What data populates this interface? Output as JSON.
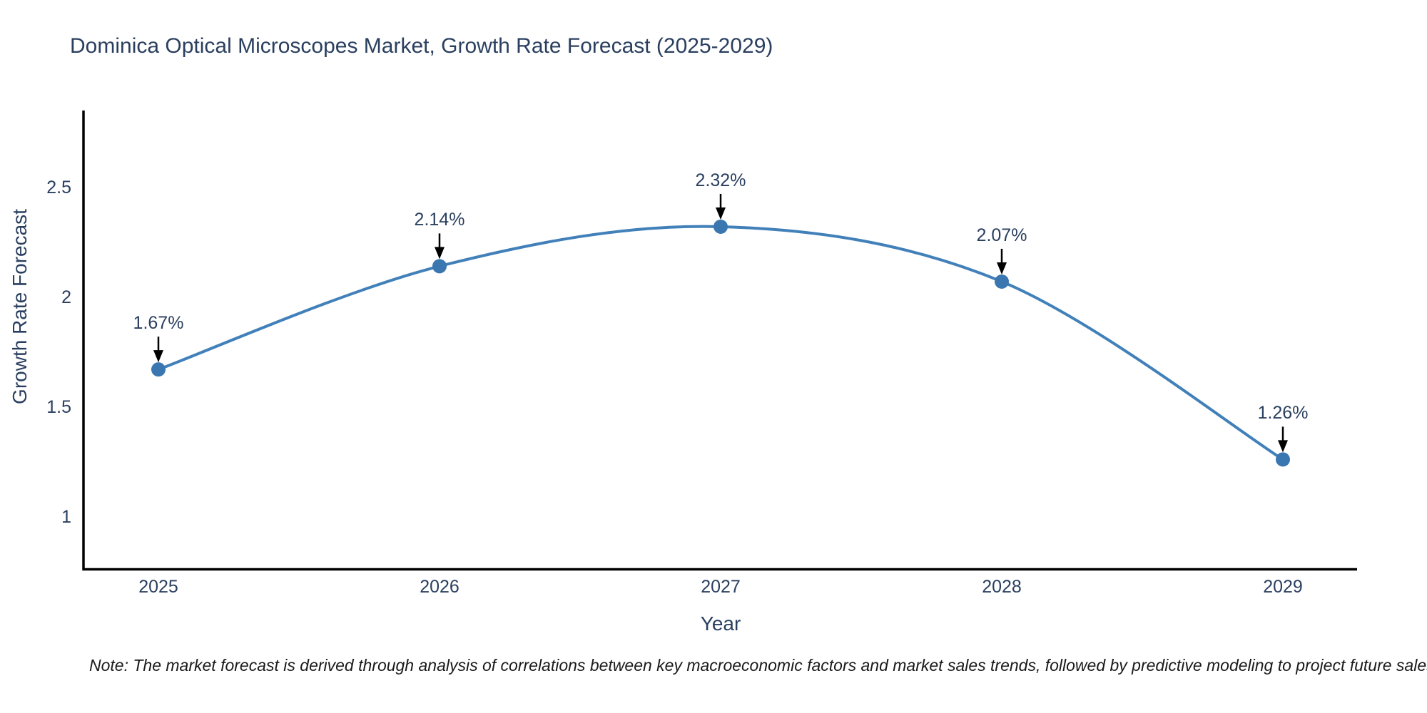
{
  "title": {
    "text": "Dominica Optical Microscopes Market, Growth Rate Forecast (2025-2029)",
    "color": "#2a3f5f"
  },
  "note": {
    "text": "Note: The market forecast is derived through analysis of correlations between key macroeconomic factors and market sales trends, followed by predictive modeling to project future sales"
  },
  "chart_data": {
    "type": "line",
    "line_shape": "spline",
    "x": [
      2025,
      2026,
      2027,
      2028,
      2029
    ],
    "x_labels": [
      "2025",
      "2026",
      "2027",
      "2028",
      "2029"
    ],
    "values": [
      1.67,
      2.14,
      2.32,
      2.07,
      1.26
    ],
    "point_labels": [
      "1.67%",
      "2.14%",
      "2.32%",
      "2.07%",
      "1.26%"
    ],
    "title": "Dominica Optical Microscopes Market, Growth Rate Forecast (2025-2029)",
    "xlabel": "Year",
    "ylabel": "Growth Rate Forecast",
    "yticks": [
      1,
      1.5,
      2,
      2.5
    ],
    "ytick_labels": [
      "1",
      "1.5",
      "2",
      "2.5"
    ],
    "ylim": [
      0.76,
      2.85
    ],
    "xlim": [
      2024.74,
      2029.26
    ],
    "grid": false,
    "legend": "none",
    "line_color": "#4180b9",
    "marker_color": "#3a76af",
    "axis_color": "#000000",
    "annotation_arrow_color": "#000000",
    "text_color": "#2a3f5f"
  }
}
